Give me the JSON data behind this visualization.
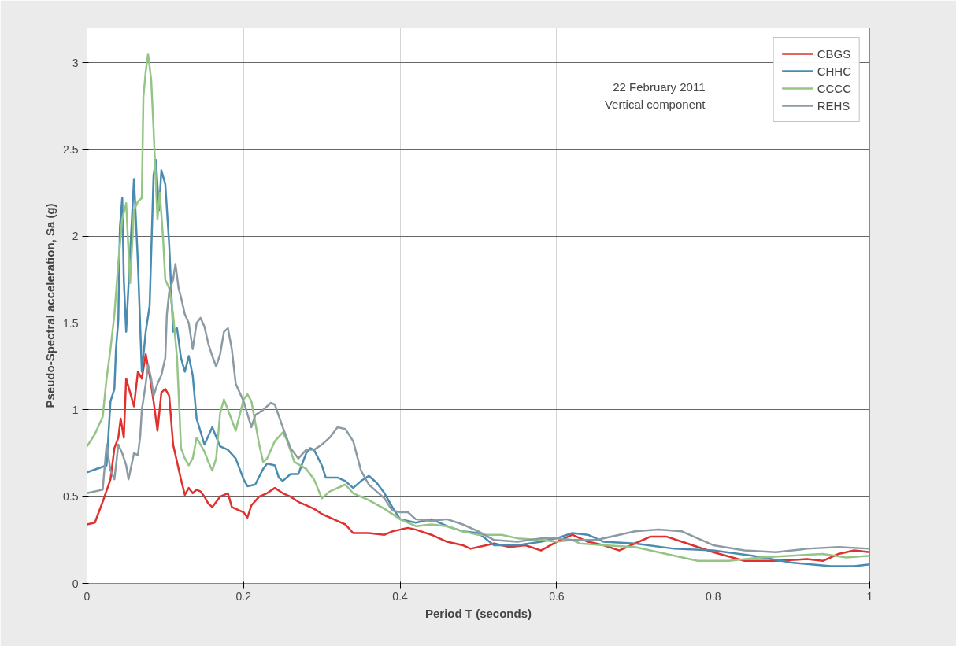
{
  "chart_data": {
    "type": "line",
    "xlabel": "Period T (seconds)",
    "ylabel": "Pseudo-Spectral acceleration, Sa (g)",
    "annotations": [
      "22 February 2011",
      "Vertical component"
    ],
    "xlim": [
      0,
      1
    ],
    "ylim": [
      0,
      3.2
    ],
    "xticks": [
      0,
      0.2,
      0.4,
      0.6,
      0.8,
      1
    ],
    "yticks": [
      0,
      0.5,
      1,
      1.5,
      2,
      2.5,
      3
    ],
    "grid": true,
    "legend": "top right",
    "marker": "none",
    "line_style": "solid",
    "series": [
      {
        "name": "CBGS",
        "color": "#e0312e",
        "x": [
          0,
          0.01,
          0.02,
          0.03,
          0.035,
          0.04,
          0.043,
          0.047,
          0.05,
          0.055,
          0.06,
          0.065,
          0.07,
          0.075,
          0.08,
          0.085,
          0.09,
          0.095,
          0.1,
          0.105,
          0.11,
          0.115,
          0.12,
          0.125,
          0.13,
          0.135,
          0.14,
          0.145,
          0.15,
          0.155,
          0.16,
          0.17,
          0.18,
          0.185,
          0.19,
          0.2,
          0.205,
          0.21,
          0.22,
          0.23,
          0.24,
          0.25,
          0.26,
          0.27,
          0.28,
          0.29,
          0.3,
          0.31,
          0.32,
          0.33,
          0.34,
          0.36,
          0.38,
          0.39,
          0.4,
          0.41,
          0.42,
          0.44,
          0.46,
          0.48,
          0.49,
          0.5,
          0.52,
          0.54,
          0.56,
          0.58,
          0.6,
          0.62,
          0.64,
          0.66,
          0.68,
          0.7,
          0.72,
          0.74,
          0.76,
          0.8,
          0.84,
          0.88,
          0.92,
          0.94,
          0.96,
          0.98,
          1
        ],
        "values": [
          0.34,
          0.35,
          0.47,
          0.6,
          0.78,
          0.84,
          0.95,
          0.84,
          1.18,
          1.1,
          1.02,
          1.22,
          1.18,
          1.32,
          1.2,
          1.05,
          0.88,
          1.1,
          1.12,
          1.08,
          0.8,
          0.7,
          0.6,
          0.51,
          0.55,
          0.52,
          0.54,
          0.53,
          0.5,
          0.46,
          0.44,
          0.5,
          0.52,
          0.44,
          0.43,
          0.41,
          0.38,
          0.45,
          0.5,
          0.52,
          0.55,
          0.52,
          0.5,
          0.47,
          0.45,
          0.43,
          0.4,
          0.38,
          0.36,
          0.34,
          0.29,
          0.29,
          0.28,
          0.3,
          0.31,
          0.32,
          0.31,
          0.28,
          0.24,
          0.22,
          0.2,
          0.21,
          0.23,
          0.21,
          0.22,
          0.19,
          0.24,
          0.28,
          0.24,
          0.22,
          0.19,
          0.23,
          0.27,
          0.27,
          0.24,
          0.18,
          0.13,
          0.13,
          0.14,
          0.13,
          0.17,
          0.19,
          0.18
        ]
      },
      {
        "name": "CHHC",
        "color": "#4a8bb0",
        "x": [
          0,
          0.025,
          0.03,
          0.035,
          0.037,
          0.04,
          0.042,
          0.045,
          0.047,
          0.05,
          0.055,
          0.06,
          0.065,
          0.07,
          0.075,
          0.08,
          0.085,
          0.088,
          0.092,
          0.095,
          0.1,
          0.105,
          0.11,
          0.115,
          0.12,
          0.125,
          0.13,
          0.135,
          0.14,
          0.15,
          0.16,
          0.17,
          0.18,
          0.19,
          0.2,
          0.205,
          0.215,
          0.225,
          0.23,
          0.24,
          0.245,
          0.25,
          0.26,
          0.27,
          0.28,
          0.285,
          0.29,
          0.3,
          0.305,
          0.32,
          0.33,
          0.34,
          0.35,
          0.36,
          0.37,
          0.38,
          0.39,
          0.4,
          0.42,
          0.44,
          0.46,
          0.48,
          0.5,
          0.52,
          0.55,
          0.58,
          0.6,
          0.62,
          0.64,
          0.66,
          0.7,
          0.75,
          0.8,
          0.85,
          0.9,
          0.95,
          0.98,
          1
        ],
        "values": [
          0.64,
          0.68,
          1.05,
          1.12,
          1.35,
          1.52,
          2.05,
          2.22,
          1.75,
          1.45,
          1.9,
          2.33,
          1.85,
          1.22,
          1.45,
          1.6,
          2.35,
          2.44,
          2.15,
          2.38,
          2.3,
          1.95,
          1.45,
          1.47,
          1.3,
          1.22,
          1.31,
          1.2,
          0.95,
          0.8,
          0.9,
          0.79,
          0.77,
          0.72,
          0.6,
          0.56,
          0.57,
          0.66,
          0.69,
          0.68,
          0.61,
          0.59,
          0.63,
          0.63,
          0.75,
          0.78,
          0.77,
          0.68,
          0.61,
          0.61,
          0.59,
          0.55,
          0.59,
          0.62,
          0.58,
          0.52,
          0.44,
          0.37,
          0.35,
          0.37,
          0.33,
          0.3,
          0.29,
          0.22,
          0.22,
          0.24,
          0.26,
          0.29,
          0.28,
          0.24,
          0.23,
          0.2,
          0.19,
          0.16,
          0.12,
          0.1,
          0.1,
          0.11
        ]
      },
      {
        "name": "CCCC",
        "color": "#94c585",
        "x": [
          0,
          0.01,
          0.02,
          0.025,
          0.03,
          0.035,
          0.04,
          0.045,
          0.05,
          0.055,
          0.06,
          0.065,
          0.07,
          0.072,
          0.075,
          0.078,
          0.082,
          0.085,
          0.088,
          0.09,
          0.093,
          0.097,
          0.1,
          0.105,
          0.11,
          0.115,
          0.118,
          0.12,
          0.125,
          0.13,
          0.135,
          0.14,
          0.145,
          0.15,
          0.155,
          0.16,
          0.165,
          0.17,
          0.175,
          0.18,
          0.19,
          0.2,
          0.205,
          0.21,
          0.22,
          0.225,
          0.23,
          0.24,
          0.25,
          0.255,
          0.265,
          0.28,
          0.29,
          0.3,
          0.31,
          0.33,
          0.34,
          0.36,
          0.38,
          0.4,
          0.42,
          0.44,
          0.46,
          0.48,
          0.5,
          0.53,
          0.55,
          0.58,
          0.6,
          0.62,
          0.63,
          0.66,
          0.7,
          0.74,
          0.78,
          0.82,
          0.86,
          0.9,
          0.94,
          0.97,
          1
        ],
        "values": [
          0.79,
          0.86,
          0.96,
          1.18,
          1.35,
          1.55,
          1.85,
          2.1,
          2.19,
          1.73,
          2.15,
          2.2,
          2.22,
          2.8,
          2.95,
          3.05,
          2.9,
          2.62,
          2.3,
          2.1,
          2.25,
          2.0,
          1.75,
          1.7,
          1.55,
          1.3,
          1.0,
          0.78,
          0.72,
          0.68,
          0.72,
          0.84,
          0.8,
          0.76,
          0.7,
          0.65,
          0.72,
          0.98,
          1.06,
          1.0,
          0.88,
          1.06,
          1.09,
          1.05,
          0.8,
          0.7,
          0.72,
          0.82,
          0.87,
          0.83,
          0.7,
          0.66,
          0.6,
          0.49,
          0.53,
          0.57,
          0.52,
          0.48,
          0.43,
          0.37,
          0.33,
          0.34,
          0.33,
          0.3,
          0.28,
          0.28,
          0.26,
          0.25,
          0.24,
          0.25,
          0.23,
          0.22,
          0.21,
          0.17,
          0.13,
          0.13,
          0.15,
          0.16,
          0.17,
          0.15,
          0.16
        ]
      },
      {
        "name": "REHS",
        "color": "#8c9ba3",
        "x": [
          0,
          0.02,
          0.025,
          0.03,
          0.035,
          0.04,
          0.045,
          0.05,
          0.053,
          0.06,
          0.065,
          0.068,
          0.07,
          0.075,
          0.078,
          0.082,
          0.085,
          0.09,
          0.095,
          0.1,
          0.102,
          0.105,
          0.11,
          0.113,
          0.117,
          0.12,
          0.125,
          0.13,
          0.135,
          0.14,
          0.145,
          0.15,
          0.155,
          0.16,
          0.165,
          0.17,
          0.175,
          0.18,
          0.185,
          0.19,
          0.2,
          0.21,
          0.215,
          0.225,
          0.235,
          0.24,
          0.25,
          0.26,
          0.27,
          0.28,
          0.29,
          0.3,
          0.31,
          0.32,
          0.33,
          0.34,
          0.35,
          0.36,
          0.37,
          0.38,
          0.39,
          0.4,
          0.41,
          0.42,
          0.44,
          0.46,
          0.48,
          0.5,
          0.52,
          0.55,
          0.58,
          0.6,
          0.62,
          0.65,
          0.68,
          0.7,
          0.73,
          0.76,
          0.78,
          0.8,
          0.84,
          0.88,
          0.92,
          0.96,
          1
        ],
        "values": [
          0.52,
          0.54,
          0.8,
          0.65,
          0.6,
          0.8,
          0.75,
          0.68,
          0.6,
          0.75,
          0.74,
          0.85,
          1.0,
          1.15,
          1.26,
          1.18,
          1.08,
          1.15,
          1.2,
          1.3,
          1.55,
          1.68,
          1.75,
          1.84,
          1.7,
          1.65,
          1.55,
          1.5,
          1.35,
          1.5,
          1.53,
          1.48,
          1.38,
          1.31,
          1.25,
          1.32,
          1.45,
          1.47,
          1.35,
          1.15,
          1.05,
          0.9,
          0.97,
          1.0,
          1.04,
          1.03,
          0.9,
          0.78,
          0.72,
          0.77,
          0.77,
          0.8,
          0.84,
          0.9,
          0.89,
          0.82,
          0.65,
          0.57,
          0.53,
          0.49,
          0.42,
          0.41,
          0.41,
          0.37,
          0.36,
          0.37,
          0.34,
          0.3,
          0.25,
          0.24,
          0.26,
          0.26,
          0.25,
          0.25,
          0.28,
          0.3,
          0.31,
          0.3,
          0.26,
          0.22,
          0.19,
          0.18,
          0.2,
          0.21,
          0.2
        ]
      }
    ]
  }
}
